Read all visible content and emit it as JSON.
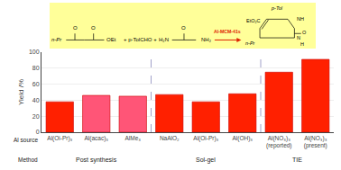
{
  "chart_data": {
    "type": "bar",
    "categories": [
      "Al(Oi-Pr)₃",
      "Al(acac)₃",
      "AlMe₃",
      "NaAlO₂",
      "Al(Oi-Pr)₃",
      "Al(OH)₃",
      "Al(NO₃)₃\n(reported)",
      "Al(NO₃)₃\n(present)"
    ],
    "values": [
      38,
      46,
      45,
      47,
      38,
      48,
      75,
      91
    ],
    "colors": [
      "#ff2000",
      "#ff5577",
      "#ff5577",
      "#ff2000",
      "#ff2000",
      "#ff2000",
      "#ff2000",
      "#ff2000"
    ],
    "ylabel": "Yield /%",
    "ylim": [
      0,
      100
    ],
    "yticks": [
      0,
      20,
      40,
      60,
      80,
      100
    ],
    "grid": true,
    "annotations": [
      "Method",
      "Al source",
      "Post synthesis",
      "Sol-gel",
      "TIE",
      "n-Pr",
      "O",
      "O",
      "OEt",
      "+ p-TolCHO +",
      "O",
      "H₂N",
      "NH₂",
      "Al-MCM-41s",
      "p-Tol",
      "EtO₂C",
      "NH",
      "N",
      "H",
      "O",
      "n-Pr"
    ]
  }
}
